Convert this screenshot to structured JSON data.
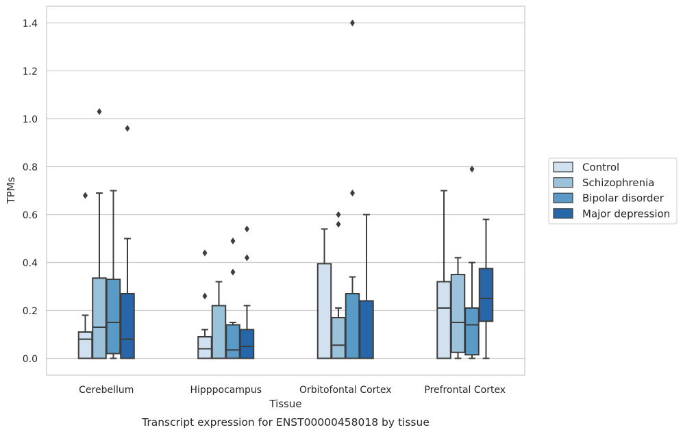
{
  "chart_data": {
    "type": "boxplot",
    "title": "Transcript expression for ENST00000458018 by tissue",
    "xlabel": "Tissue",
    "ylabel": "TPMs",
    "ylim": [
      -0.07,
      1.47
    ],
    "yticks": [
      0.0,
      0.2,
      0.4,
      0.6,
      0.8,
      1.0,
      1.2,
      1.4
    ],
    "ytick_labels": [
      "0.0",
      "0.2",
      "0.4",
      "0.6",
      "0.8",
      "1.0",
      "1.2",
      "1.4"
    ],
    "grid": "horizontal",
    "legend_position": "right",
    "categories": [
      "Cerebellum",
      "Hipppocampus",
      "Orbitofontal Cortex",
      "Prefrontal Cortex"
    ],
    "series": [
      {
        "name": "Control",
        "color": "#d1e1f0",
        "boxes": [
          {
            "whislo": 0.0,
            "q1": 0.0,
            "med": 0.08,
            "q3": 0.11,
            "whishi": 0.18,
            "fliers": [
              0.68
            ]
          },
          {
            "whislo": 0.0,
            "q1": 0.0,
            "med": 0.04,
            "q3": 0.09,
            "whishi": 0.12,
            "fliers": [
              0.26,
              0.44
            ]
          },
          {
            "whislo": 0.0,
            "q1": 0.0,
            "med": 0.0,
            "q3": 0.395,
            "whishi": 0.54,
            "fliers": []
          },
          {
            "whislo": 0.0,
            "q1": 0.0,
            "med": 0.21,
            "q3": 0.32,
            "whishi": 0.7,
            "fliers": []
          }
        ]
      },
      {
        "name": "Schizophrenia",
        "color": "#9bc2db",
        "boxes": [
          {
            "whislo": 0.0,
            "q1": 0.0,
            "med": 0.13,
            "q3": 0.335,
            "whishi": 0.69,
            "fliers": [
              1.03
            ]
          },
          {
            "whislo": 0.0,
            "q1": 0.0,
            "med": 0.0,
            "q3": 0.22,
            "whishi": 0.32,
            "fliers": []
          },
          {
            "whislo": 0.0,
            "q1": 0.0,
            "med": 0.055,
            "q3": 0.17,
            "whishi": 0.21,
            "fliers": [
              0.56,
              0.6
            ]
          },
          {
            "whislo": 0.0,
            "q1": 0.025,
            "med": 0.15,
            "q3": 0.35,
            "whishi": 0.42,
            "fliers": []
          }
        ]
      },
      {
        "name": "Bipolar disorder",
        "color": "#5a9ac6",
        "boxes": [
          {
            "whislo": 0.0,
            "q1": 0.02,
            "med": 0.15,
            "q3": 0.33,
            "whishi": 0.7,
            "fliers": []
          },
          {
            "whislo": 0.0,
            "q1": 0.0,
            "med": 0.035,
            "q3": 0.14,
            "whishi": 0.15,
            "fliers": [
              0.36,
              0.49
            ]
          },
          {
            "whislo": 0.0,
            "q1": 0.0,
            "med": 0.0,
            "q3": 0.27,
            "whishi": 0.34,
            "fliers": [
              0.69,
              1.4
            ]
          },
          {
            "whislo": 0.0,
            "q1": 0.015,
            "med": 0.14,
            "q3": 0.21,
            "whishi": 0.4,
            "fliers": [
              0.79
            ]
          }
        ]
      },
      {
        "name": "Major depression",
        "color": "#2766a8",
        "boxes": [
          {
            "whislo": 0.0,
            "q1": 0.0,
            "med": 0.08,
            "q3": 0.27,
            "whishi": 0.5,
            "fliers": [
              0.96
            ]
          },
          {
            "whislo": 0.0,
            "q1": 0.0,
            "med": 0.05,
            "q3": 0.12,
            "whishi": 0.22,
            "fliers": [
              0.42,
              0.54
            ]
          },
          {
            "whislo": 0.0,
            "q1": 0.0,
            "med": 0.0,
            "q3": 0.24,
            "whishi": 0.6,
            "fliers": []
          },
          {
            "whislo": 0.0,
            "q1": 0.155,
            "med": 0.25,
            "q3": 0.375,
            "whishi": 0.58,
            "fliers": []
          }
        ]
      }
    ]
  }
}
